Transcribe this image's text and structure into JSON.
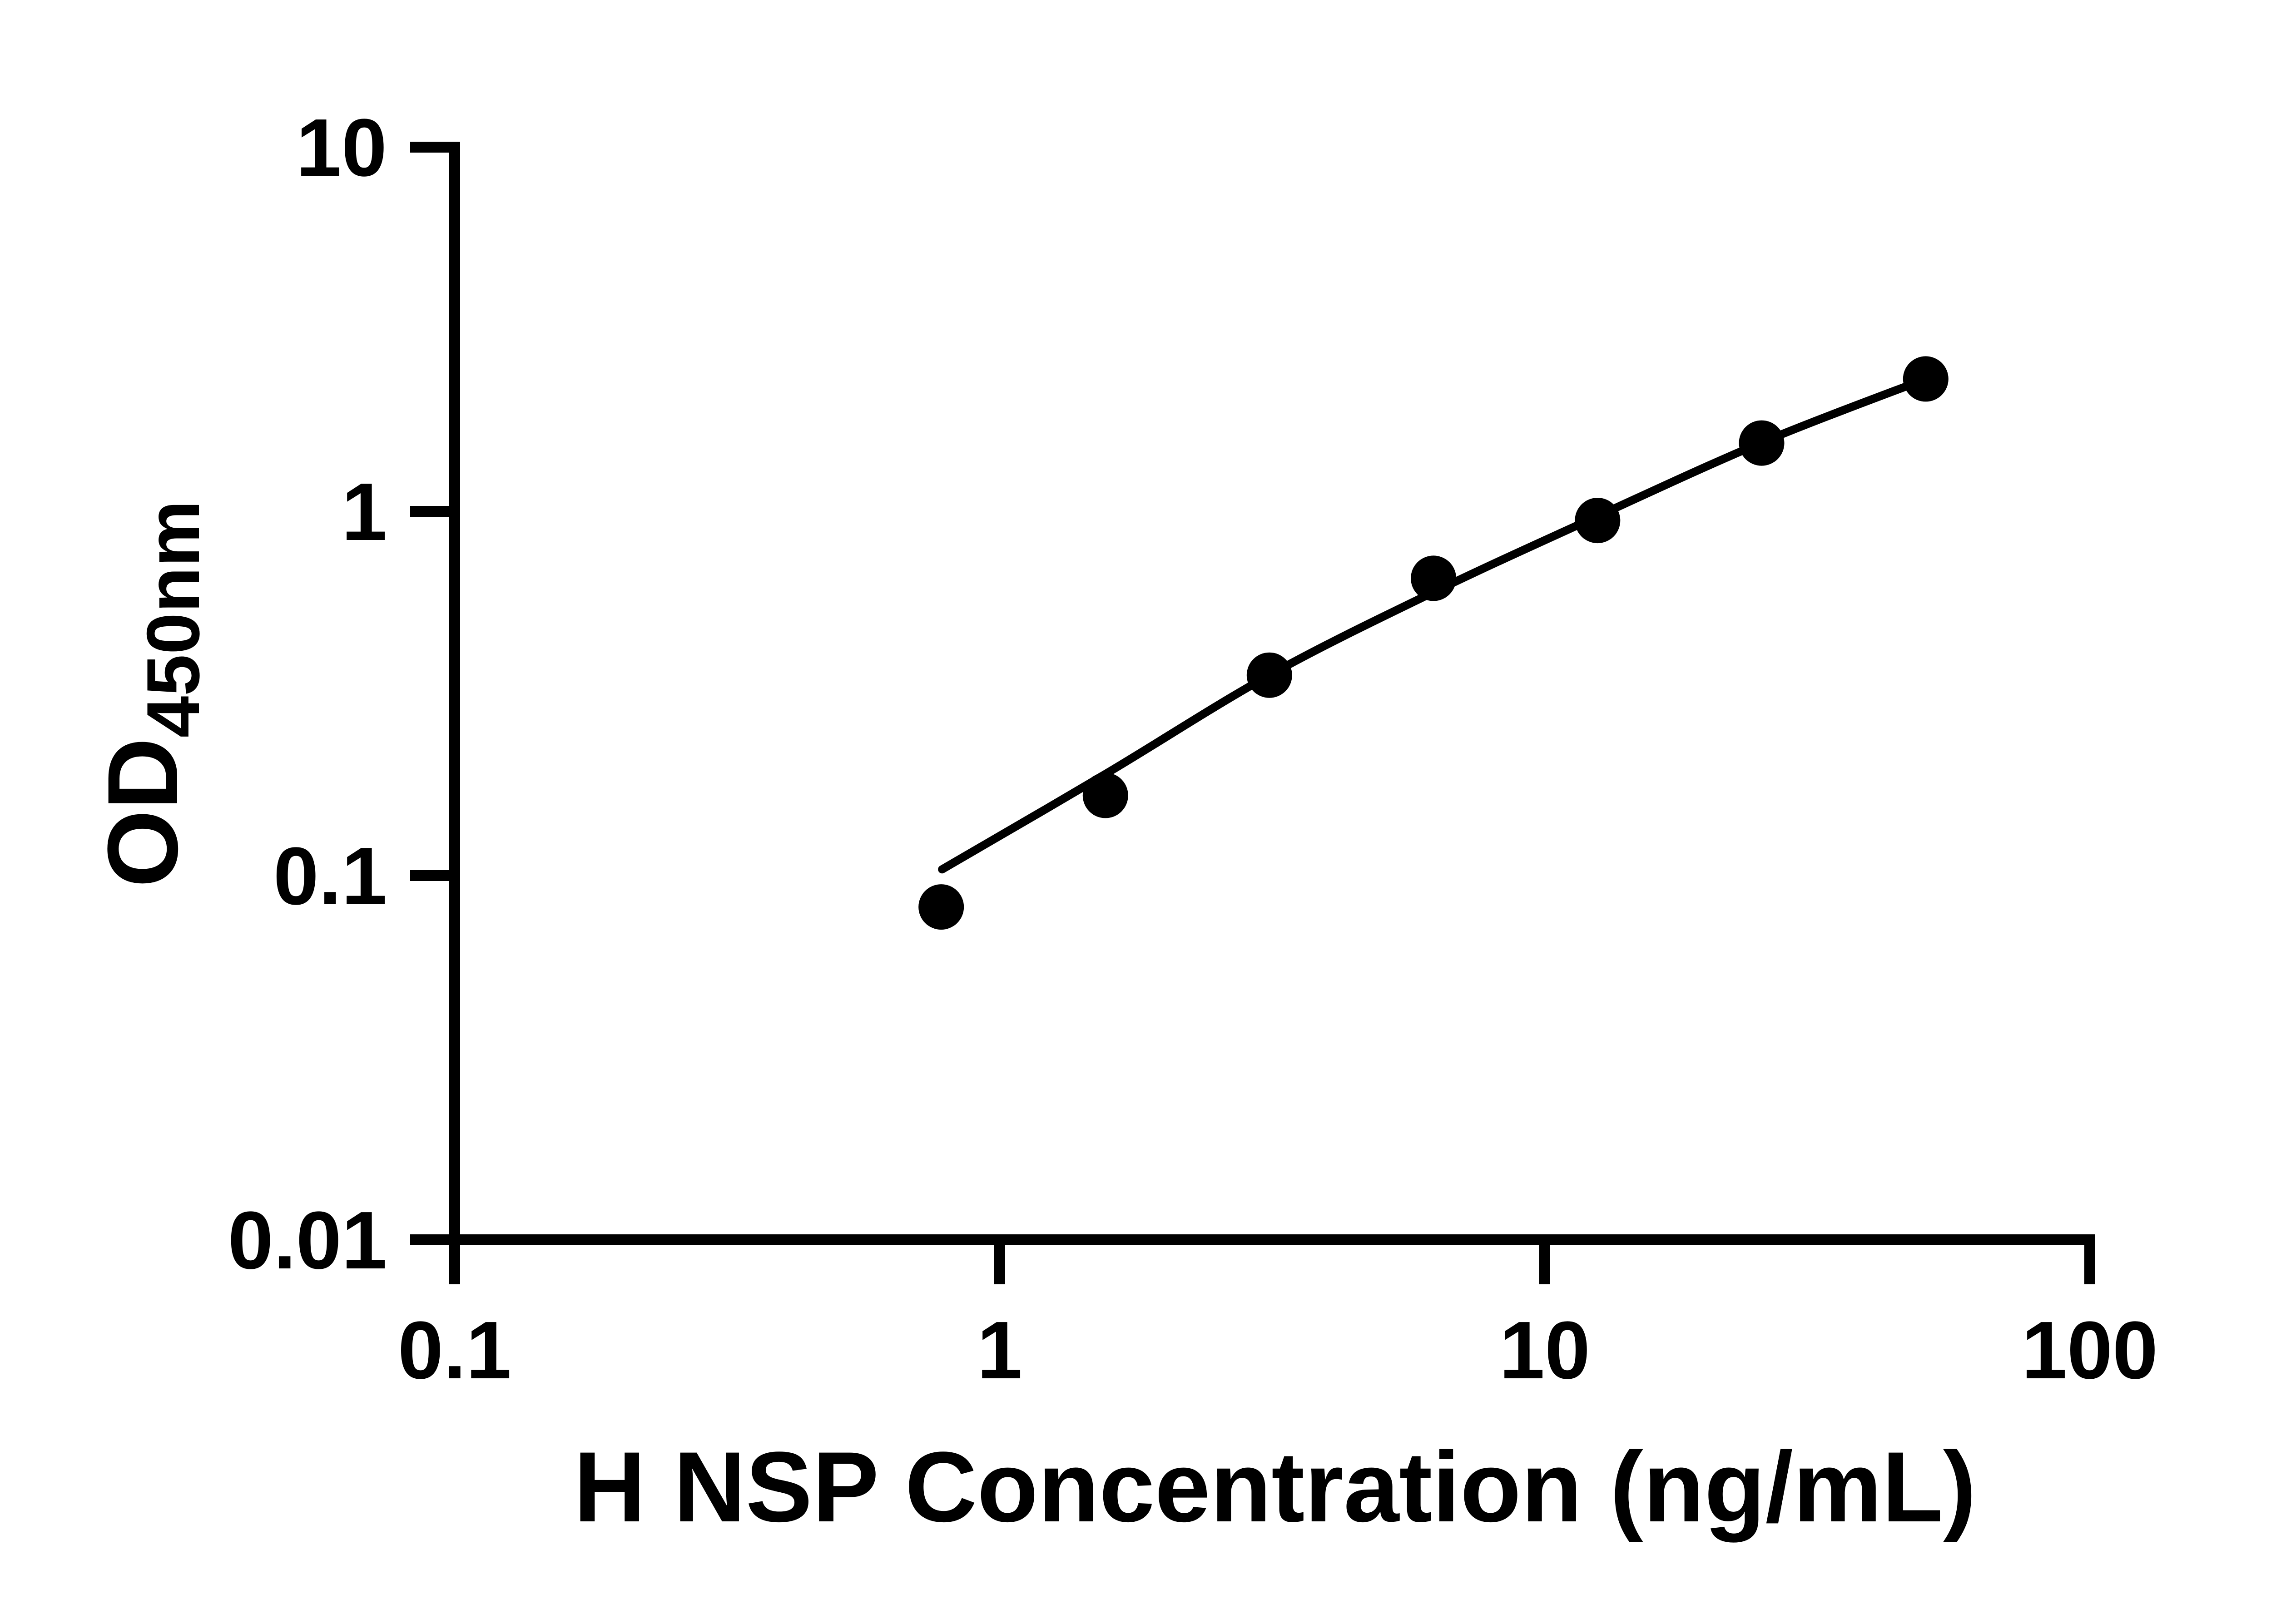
{
  "chart_data": {
    "type": "scatter",
    "title": "",
    "xlabel": "H NSP Concentration (ng/mL)",
    "ylabel_main": "OD",
    "ylabel_sub": "450nm",
    "xscale": "log",
    "yscale": "log",
    "xlim": [
      0.1,
      100
    ],
    "ylim": [
      0.01,
      10
    ],
    "grid": false,
    "legend": false,
    "x_ticks": [
      {
        "value": 0.1,
        "label": "0.1"
      },
      {
        "value": 1,
        "label": "1"
      },
      {
        "value": 10,
        "label": "10"
      },
      {
        "value": 100,
        "label": "100"
      }
    ],
    "y_ticks": [
      {
        "value": 10,
        "label": "10"
      },
      {
        "value": 1,
        "label": "1"
      },
      {
        "value": 0.1,
        "label": "0.1"
      },
      {
        "value": 0.01,
        "label": "0.01"
      }
    ],
    "series": [
      {
        "name": "standard-points",
        "type": "scatter",
        "x": [
          0.781,
          1.563,
          3.125,
          6.25,
          12.5,
          25,
          50
        ],
        "y": [
          0.082,
          0.166,
          0.355,
          0.655,
          0.944,
          1.54,
          2.31
        ]
      },
      {
        "name": "fit-curve",
        "type": "line",
        "x": [
          0.784,
          1.563,
          3.125,
          6.25,
          12.5,
          25,
          50
        ],
        "y": [
          0.104,
          0.19,
          0.355,
          0.6,
          0.97,
          1.545,
          2.31
        ]
      }
    ],
    "colors": {
      "marker": "#000000",
      "line": "#000000",
      "axis": "#000000",
      "background": "#ffffff"
    }
  }
}
